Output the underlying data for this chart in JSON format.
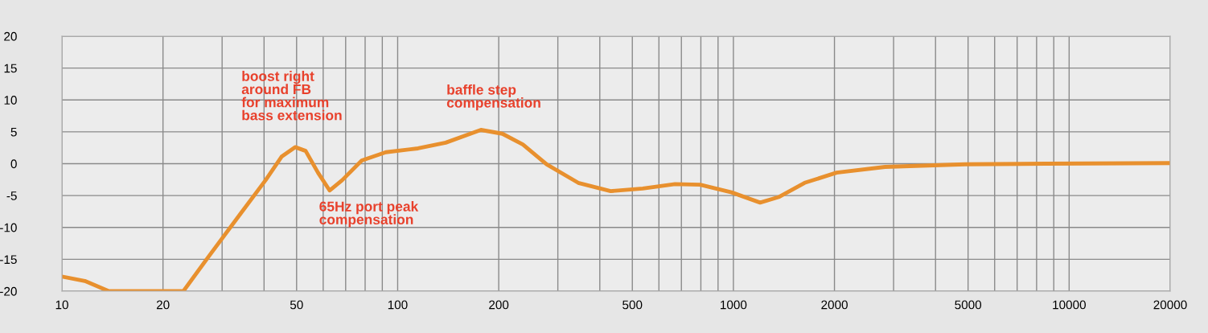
{
  "chart_data": {
    "type": "line",
    "log": "x",
    "grid": true,
    "marker": "none",
    "line_style": "solid",
    "xlim": [
      10,
      20000
    ],
    "ylim": [
      -20,
      20
    ],
    "xticks": [
      10,
      20,
      {
        "value": 30,
        "label": null
      },
      {
        "value": 40,
        "label": null
      },
      50,
      {
        "value": 60,
        "label": null
      },
      {
        "value": 70,
        "label": null
      },
      {
        "value": 80,
        "label": null
      },
      {
        "value": 90,
        "label": null
      },
      100,
      200,
      {
        "value": 300,
        "label": null
      },
      {
        "value": 400,
        "label": null
      },
      500,
      {
        "value": 600,
        "label": null
      },
      {
        "value": 700,
        "label": null
      },
      {
        "value": 800,
        "label": null
      },
      {
        "value": 900,
        "label": null
      },
      1000,
      2000,
      {
        "value": 3000,
        "label": null
      },
      {
        "value": 4000,
        "label": null
      },
      5000,
      {
        "value": 6000,
        "label": null
      },
      {
        "value": 7000,
        "label": null
      },
      {
        "value": 8000,
        "label": null
      },
      {
        "value": 9000,
        "label": null
      },
      10000,
      20000
    ],
    "yticks": [
      -20,
      -15,
      -10,
      -5,
      0,
      5,
      10,
      15,
      20
    ],
    "x": [
      10,
      11.7,
      13.8,
      23,
      27.5,
      34.2,
      40.4,
      45.1,
      49.5,
      53.2,
      57.9,
      62.7,
      68.3,
      78.2,
      92.2,
      115,
      139,
      177,
      205,
      236,
      278,
      345,
      431,
      537,
      670,
      796,
      987,
      1201,
      1370,
      1630,
      2030,
      2830,
      4900,
      8500,
      20000
    ],
    "series": [
      {
        "color": "#e8902e",
        "values": [
          -17.7,
          -18.4,
          -20,
          -20,
          -14.4,
          -7.7,
          -2.6,
          1.1,
          2.6,
          2.0,
          -1.4,
          -4.2,
          -2.6,
          0.5,
          1.8,
          2.4,
          3.3,
          5.3,
          4.7,
          3.0,
          -0.1,
          -3.0,
          -4.3,
          -3.9,
          -3.2,
          -3.3,
          -4.5,
          -6.1,
          -5.2,
          -3.0,
          -1.4,
          -0.5,
          -0.1,
          0,
          0.1
        ]
      }
    ],
    "annotations": [
      "boost right\naround FB\nfor maximum\nbass extension",
      "65Hz port peak\ncompensation",
      "baffle step\ncompensation"
    ]
  }
}
